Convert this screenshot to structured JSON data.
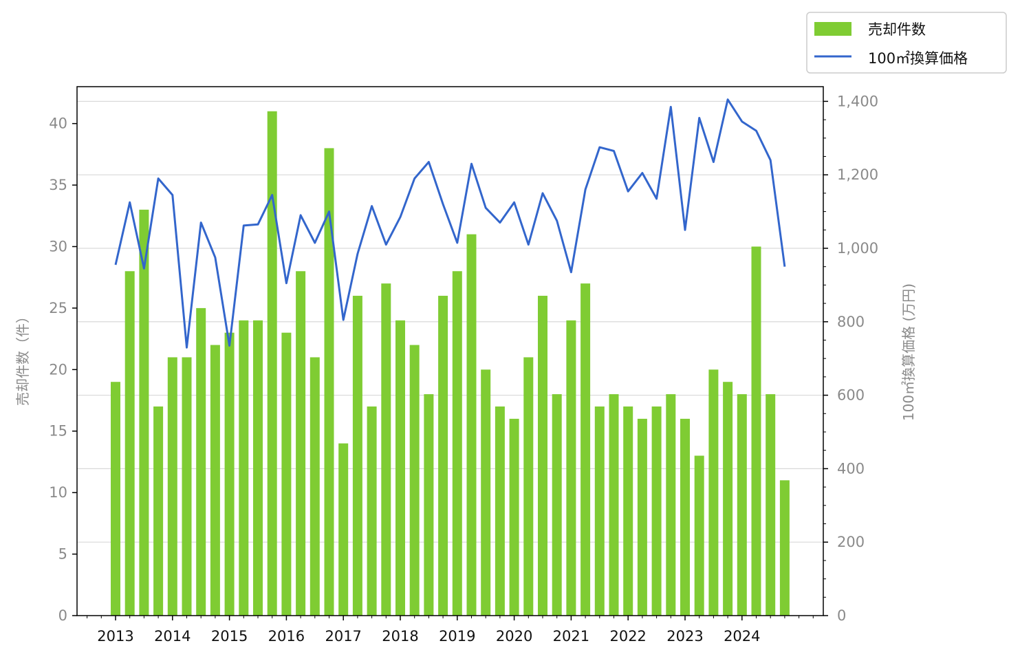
{
  "chart_data": {
    "type": "bar",
    "x_tick_labels": [
      "2013",
      "2014",
      "2015",
      "2016",
      "2017",
      "2018",
      "2019",
      "2020",
      "2021",
      "2022",
      "2023",
      "2024"
    ],
    "left_axis": {
      "label": "売却件数（件）",
      "ylim": [
        0,
        43
      ],
      "ticks": [
        0,
        5,
        10,
        15,
        20,
        25,
        30,
        35,
        40
      ],
      "tick_labels": [
        "0",
        "5",
        "10",
        "15",
        "20",
        "25",
        "30",
        "35",
        "40"
      ]
    },
    "right_axis": {
      "label": "100㎡換算価格 (万円)",
      "ylim": [
        0,
        1440
      ],
      "ticks": [
        0,
        200,
        400,
        600,
        800,
        1000,
        1200,
        1400
      ],
      "tick_labels": [
        "0",
        "200",
        "400",
        "600",
        "800",
        "1,000",
        "1,200",
        "1,400"
      ]
    },
    "grid": "horizontal, right axis",
    "legend": {
      "placement": "top-right, outside plot",
      "entries": [
        "売却件数",
        "100㎡換算価格"
      ]
    },
    "colors": {
      "bars": "#7fcc33",
      "line": "#3366cc"
    },
    "series": [
      {
        "name": "売却件数",
        "kind": "bar",
        "axis": "left",
        "values": [
          19,
          28,
          33,
          17,
          21,
          21,
          25,
          22,
          23,
          24,
          24,
          41,
          23,
          28,
          21,
          38,
          14,
          26,
          17,
          27,
          24,
          22,
          18,
          26,
          28,
          31,
          20,
          17,
          16,
          21,
          26,
          18,
          24,
          27,
          17,
          18,
          17,
          16,
          17,
          18,
          16,
          13,
          20,
          19,
          18,
          30,
          18,
          11
        ]
      },
      {
        "name": "100㎡換算価格",
        "kind": "line",
        "axis": "right",
        "values": [
          955,
          1125,
          945,
          1190,
          1145,
          730,
          1070,
          975,
          735,
          1062,
          1065,
          1145,
          905,
          1090,
          1015,
          1100,
          805,
          985,
          1115,
          1010,
          1085,
          1190,
          1235,
          1120,
          1015,
          1230,
          1110,
          1070,
          1125,
          1010,
          1150,
          1075,
          935,
          1160,
          1275,
          1265,
          1155,
          1205,
          1135,
          1385,
          1050,
          1355,
          1235,
          1405,
          1345,
          1320,
          1240,
          950
        ]
      }
    ]
  }
}
